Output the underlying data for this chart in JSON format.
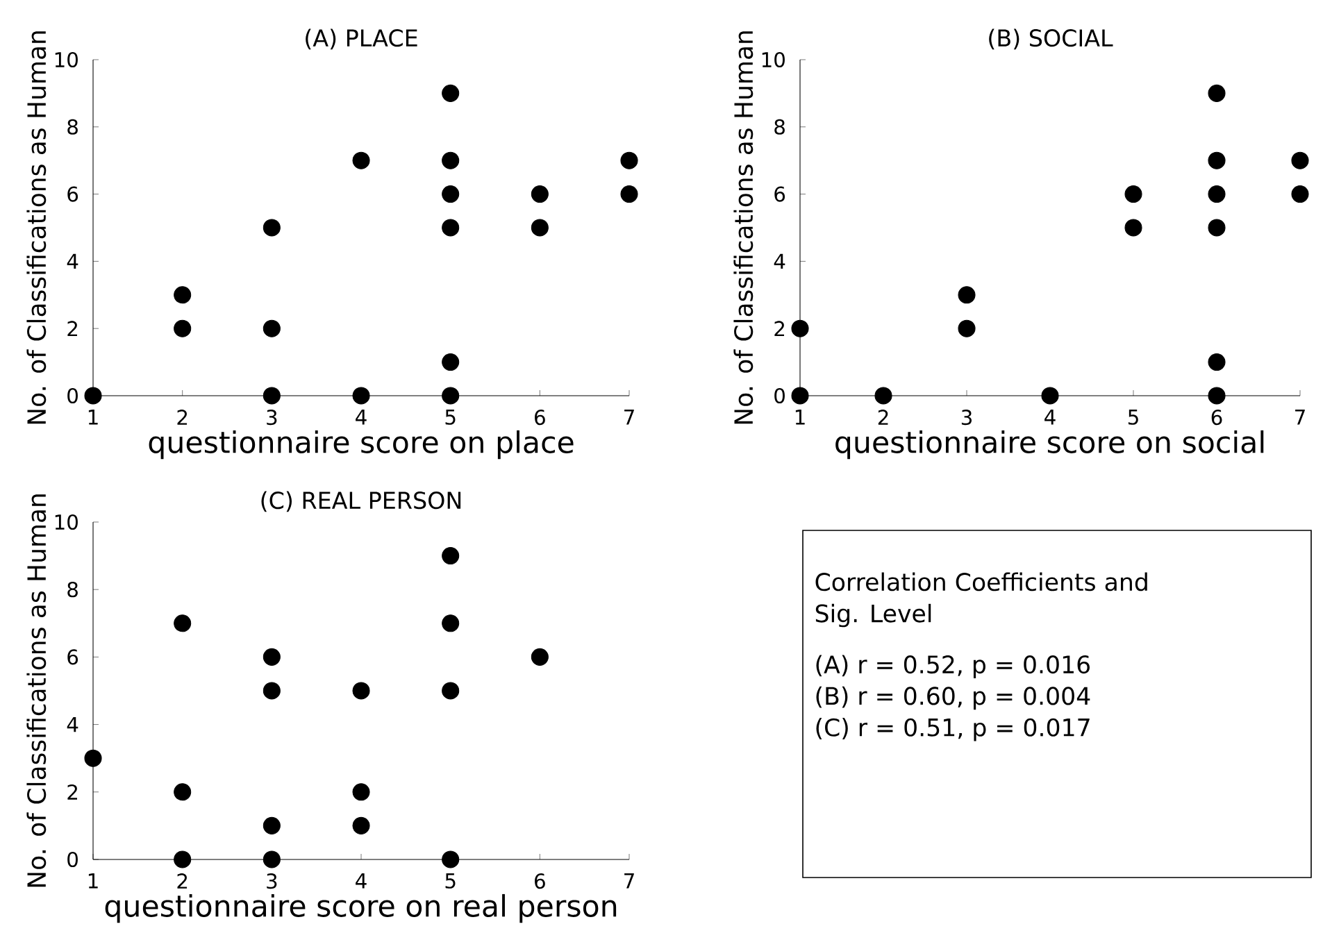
{
  "chart_data": [
    {
      "type": "scatter",
      "title": "(A) PLACE",
      "xlabel": "questionnaire score on place",
      "ylabel": "No. of Classifications as Human",
      "xlim": [
        1,
        7
      ],
      "ylim": [
        0,
        10
      ],
      "xticks": [
        1,
        2,
        3,
        4,
        5,
        6,
        7
      ],
      "yticks": [
        0,
        2,
        4,
        6,
        8,
        10
      ],
      "marker": "circle",
      "color": "#000000",
      "grid": false,
      "x": [
        1,
        2,
        2,
        3,
        3,
        3,
        4,
        4,
        5,
        5,
        5,
        5,
        5,
        5,
        6,
        6,
        7,
        7
      ],
      "values": [
        0,
        3,
        2,
        5,
        2,
        0,
        7,
        0,
        9,
        7,
        6,
        5,
        1,
        0,
        6,
        5,
        7,
        6
      ]
    },
    {
      "type": "scatter",
      "title": "(B) SOCIAL",
      "xlabel": "questionnaire score on social",
      "ylabel": "No. of Classifications as Human",
      "xlim": [
        1,
        7
      ],
      "ylim": [
        0,
        10
      ],
      "xticks": [
        1,
        2,
        3,
        4,
        5,
        6,
        7
      ],
      "yticks": [
        0,
        2,
        4,
        6,
        8,
        10
      ],
      "marker": "circle",
      "color": "#000000",
      "grid": false,
      "x": [
        1,
        1,
        2,
        3,
        3,
        4,
        5,
        5,
        6,
        6,
        6,
        6,
        6,
        6,
        7,
        7
      ],
      "values": [
        2,
        0,
        0,
        3,
        2,
        0,
        6,
        5,
        9,
        7,
        6,
        5,
        1,
        0,
        7,
        6
      ]
    },
    {
      "type": "scatter",
      "title": "(C) REAL PERSON",
      "xlabel": "questionnaire score on real person",
      "ylabel": "No. of Classifications as Human",
      "xlim": [
        1,
        7
      ],
      "ylim": [
        0,
        10
      ],
      "xticks": [
        1,
        2,
        3,
        4,
        5,
        6,
        7
      ],
      "yticks": [
        0,
        2,
        4,
        6,
        8,
        10
      ],
      "marker": "circle",
      "color": "#000000",
      "grid": false,
      "x": [
        1,
        2,
        2,
        2,
        3,
        3,
        3,
        3,
        4,
        4,
        4,
        5,
        5,
        5,
        5,
        6
      ],
      "values": [
        3,
        7,
        2,
        0,
        6,
        5,
        1,
        0,
        5,
        2,
        1,
        9,
        7,
        5,
        0,
        6
      ]
    },
    {
      "type": "other",
      "annotations": [
        "Correlation Coefficients and Sig. Level",
        "(A) r = 0.52, p = 0.016",
        "(B) r = 0.60, p = 0.004",
        "(C) r = 0.51, p = 0.017"
      ]
    }
  ]
}
